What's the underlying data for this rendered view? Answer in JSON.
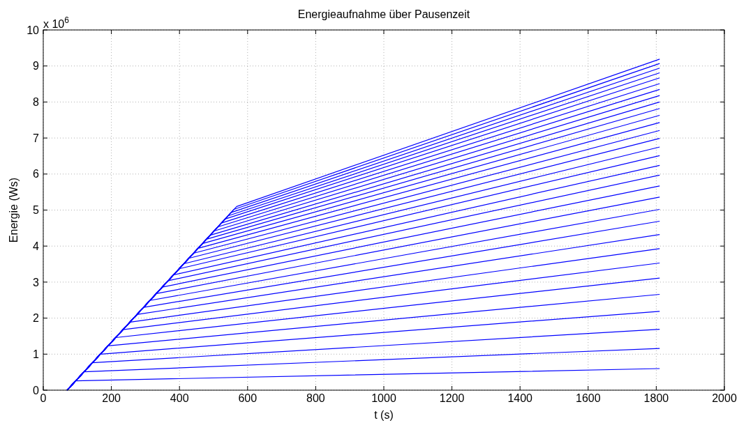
{
  "chart_data": {
    "type": "line",
    "title": "Energieaufnahme über Pausenzeit",
    "xlabel": "t (s)",
    "ylabel": "Energie  (Ws)",
    "annotations": [
      "x 10$^{6}$"
    ],
    "xlim": [
      0,
      2000
    ],
    "xticks": [
      0,
      200,
      400,
      600,
      800,
      1000,
      1200,
      1400,
      1600,
      1800,
      2000
    ],
    "ylim": [
      0,
      10
    ],
    "yticks": [
      0,
      1,
      2,
      3,
      4,
      5,
      6,
      7,
      8,
      9,
      10
    ],
    "grid": true,
    "series": [
      {
        "color": "#0000ff",
        "x": [
          70,
          95,
          1810
        ],
        "values": [
          0,
          0.26,
          0.6
        ]
      },
      {
        "color": "#0000ff",
        "x": [
          70,
          120,
          1810
        ],
        "values": [
          0,
          0.51,
          1.16
        ]
      },
      {
        "color": "#0000ff",
        "x": [
          70,
          144,
          1810
        ],
        "values": [
          0,
          0.76,
          1.69
        ]
      },
      {
        "color": "#0000ff",
        "x": [
          70,
          168,
          1810
        ],
        "values": [
          0,
          1.0,
          2.19
        ]
      },
      {
        "color": "#0000ff",
        "x": [
          70,
          190,
          1810
        ],
        "values": [
          0,
          1.23,
          2.66
        ]
      },
      {
        "color": "#0000ff",
        "x": [
          70,
          213,
          1810
        ],
        "values": [
          0,
          1.46,
          3.11
        ]
      },
      {
        "color": "#0000ff",
        "x": [
          70,
          234,
          1810
        ],
        "values": [
          0,
          1.68,
          3.53
        ]
      },
      {
        "color": "#0000ff",
        "x": [
          70,
          255,
          1810
        ],
        "values": [
          0,
          1.89,
          3.93
        ]
      },
      {
        "color": "#0000ff",
        "x": [
          70,
          275,
          1810
        ],
        "values": [
          0,
          2.1,
          4.32
        ]
      },
      {
        "color": "#0000ff",
        "x": [
          70,
          295,
          1810
        ],
        "values": [
          0,
          2.3,
          4.69
        ]
      },
      {
        "color": "#0000ff",
        "x": [
          70,
          313,
          1810
        ],
        "values": [
          0,
          2.49,
          5.02
        ]
      },
      {
        "color": "#0000ff",
        "x": [
          70,
          332,
          1810
        ],
        "values": [
          0,
          2.68,
          5.36
        ]
      },
      {
        "color": "#0000ff",
        "x": [
          70,
          349,
          1810
        ],
        "values": [
          0,
          2.86,
          5.67
        ]
      },
      {
        "color": "#0000ff",
        "x": [
          70,
          367,
          1810
        ],
        "values": [
          0,
          3.04,
          5.97
        ]
      },
      {
        "color": "#0000ff",
        "x": [
          70,
          382,
          1810
        ],
        "values": [
          0,
          3.2,
          6.24
        ]
      },
      {
        "color": "#0000ff",
        "x": [
          70,
          399,
          1810
        ],
        "values": [
          0,
          3.37,
          6.51
        ]
      },
      {
        "color": "#0000ff",
        "x": [
          70,
          413,
          1810
        ],
        "values": [
          0,
          3.51,
          6.75
        ]
      },
      {
        "color": "#0000ff",
        "x": [
          70,
          427,
          1810
        ],
        "values": [
          0,
          3.66,
          6.99
        ]
      },
      {
        "color": "#0000ff",
        "x": [
          70,
          441,
          1810
        ],
        "values": [
          0,
          3.8,
          7.21
        ]
      },
      {
        "color": "#0000ff",
        "x": [
          70,
          455,
          1810
        ],
        "values": [
          0,
          3.94,
          7.43
        ]
      },
      {
        "color": "#0000ff",
        "x": [
          70,
          467,
          1810
        ],
        "values": [
          0,
          4.07,
          7.63
        ]
      },
      {
        "color": "#0000ff",
        "x": [
          70,
          479,
          1810
        ],
        "values": [
          0,
          4.19,
          7.82
        ]
      },
      {
        "color": "#0000ff",
        "x": [
          70,
          490,
          1810
        ],
        "values": [
          0,
          4.3,
          8.0
        ]
      },
      {
        "color": "#0000ff",
        "x": [
          70,
          502,
          1810
        ],
        "values": [
          0,
          4.42,
          8.18
        ]
      },
      {
        "color": "#0000ff",
        "x": [
          70,
          512,
          1810
        ],
        "values": [
          0,
          4.53,
          8.35
        ]
      },
      {
        "color": "#0000ff",
        "x": [
          70,
          523,
          1810
        ],
        "values": [
          0,
          4.64,
          8.51
        ]
      },
      {
        "color": "#0000ff",
        "x": [
          70,
          534,
          1810
        ],
        "values": [
          0,
          4.75,
          8.67
        ]
      },
      {
        "color": "#0000ff",
        "x": [
          70,
          543,
          1810
        ],
        "values": [
          0,
          4.84,
          8.81
        ]
      },
      {
        "color": "#0000ff",
        "x": [
          70,
          551,
          1810
        ],
        "values": [
          0,
          4.93,
          8.94
        ]
      },
      {
        "color": "#0000ff",
        "x": [
          70,
          560,
          1810
        ],
        "values": [
          0,
          5.02,
          9.07
        ]
      },
      {
        "color": "#0000ff",
        "x": [
          70,
          568,
          1810
        ],
        "values": [
          0,
          5.1,
          9.19
        ]
      }
    ]
  }
}
